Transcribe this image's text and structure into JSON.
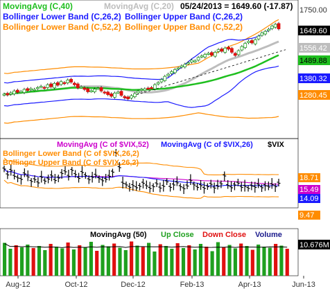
{
  "chart_data": [
    {
      "type": "candlestick",
      "panel": "price",
      "header": {
        "ma40": "MovingAvg (C,40)",
        "ma20": "MovingAvg (C,20)",
        "date_close": "05/24/2013 = 1649.60 (-17.87)",
        "bb26_lower": "Bollinger Lower Band (C,26,2)",
        "bb26_upper": "Bollinger Upper Band (C,26,2)",
        "bb52_lower": "Bollinger Lower Band (C,52,2)",
        "bb52_upper": "Bollinger Upper Band (C,52,2)"
      },
      "ylim": [
        1230,
        1760
      ],
      "yticks": [
        "1750.00"
      ],
      "badges": [
        {
          "value": "1649.60",
          "bg": "#000000",
          "fg": "#ffffff"
        },
        {
          "value": "1556.42",
          "bg": "#bdbdbd",
          "fg": "#ffffff"
        },
        {
          "value": "1489.88",
          "bg": "#1fbf1f",
          "fg": "#000000"
        },
        {
          "value": "1380.32",
          "bg": "#1a1aff",
          "fg": "#ffffff"
        },
        {
          "value": "1280.45",
          "bg": "#ff8c00",
          "fg": "#ffffff"
        }
      ],
      "series": {
        "close": [
          1400,
          1397,
          1405,
          1412,
          1407,
          1410,
          1418,
          1414,
          1421,
          1418,
          1425,
          1430,
          1422,
          1436,
          1428,
          1441,
          1434,
          1448,
          1440,
          1454,
          1446,
          1436,
          1424,
          1428,
          1418,
          1409,
          1413,
          1419,
          1422,
          1412,
          1405,
          1398,
          1392,
          1404,
          1408,
          1395,
          1386,
          1382,
          1394,
          1402,
          1411,
          1418,
          1420,
          1422,
          1424,
          1436,
          1444,
          1456,
          1468,
          1476,
          1486,
          1494,
          1500,
          1508,
          1514,
          1520,
          1530,
          1527,
          1540,
          1546,
          1552,
          1556,
          1549,
          1560,
          1570,
          1564,
          1576,
          1572,
          1560,
          1548,
          1566,
          1582,
          1594,
          1602,
          1596,
          1608,
          1622,
          1634,
          1640,
          1648,
          1660,
          1667,
          1649.6
        ],
        "ma20_end": 1556.42,
        "ma40_end": 1489.88,
        "bb26_upper_end": 1670,
        "bb26_lower_end": 1380.32,
        "bb52_upper_end": 1690,
        "bb52_lower_end": 1280.45
      }
    },
    {
      "type": "bar",
      "panel": "vix",
      "header": {
        "ma52": "MovingAvg (C of $VIX,52)",
        "ma26": "MovingAvg (C of $VIX,26)",
        "symbol": "$VIX",
        "bb_lower": "Bollinger Lower Band (C of $VIX,26,2)",
        "bb_upper": "Bollinger Upper Band (C of $VIX,26,2)"
      },
      "ylim": [
        7,
        27
      ],
      "badges": [
        {
          "value": "18.71",
          "bg": "#ff8c00",
          "fg": "#ffffff"
        },
        {
          "value": "15.49",
          "bg": "#cc00cc",
          "fg": "#ffffff"
        },
        {
          "value": "14.09",
          "bg": "#1a1aff",
          "fg": "#ffffff"
        },
        {
          "value": "13.xx",
          "bg": "#000000",
          "fg": "#ffffff",
          "hidden": true
        },
        {
          "value": "9.47",
          "bg": "#ff8c00",
          "fg": "#ffffff"
        }
      ],
      "series": {
        "vix": [
          18.2,
          16.5,
          17.8,
          16.1,
          15.6,
          15.2,
          16.8,
          15.9,
          14.6,
          15.1,
          14.2,
          15.8,
          14.7,
          15.3,
          16.2,
          14.9,
          15.6,
          16.9,
          17.4,
          16.1,
          17.8,
          16.6,
          15.5,
          17.2,
          16.3,
          15.1,
          15.8,
          16.4,
          15.4,
          14.8,
          15.2,
          16.1,
          17.3,
          22.7,
          18.6,
          14.1,
          13.6,
          12.9,
          13.4,
          12.8,
          13.2,
          14.1,
          13.3,
          12.6,
          13.1,
          13.9,
          12.7,
          13.2,
          14.5,
          12.9,
          13.6,
          14.2,
          13.1,
          12.5,
          13.3,
          14.8,
          13.6,
          12.9,
          13.4,
          12.6,
          13.1,
          13.8,
          12.7,
          13.2,
          13.9,
          16.2,
          13.4,
          12.8,
          13.6,
          14.1,
          12.9,
          13.2,
          12.6,
          13.3,
          12.9,
          13.6,
          12.8,
          13.4,
          13.0,
          13.7,
          13.1,
          14.1
        ],
        "ma26_end": 14.09,
        "ma52_end": 15.49,
        "bb_upper_end": 18.71,
        "bb_lower_end": 9.47
      }
    },
    {
      "type": "bar",
      "panel": "volume",
      "header": {
        "ma50": "MovingAvg (50)",
        "up": "Up Close",
        "down": "Down Close",
        "volume": "Volume"
      },
      "badge": {
        "value": "10.676M",
        "bg": "#000000",
        "fg": "#ffffff"
      },
      "volumes": [
        0.95,
        0.78,
        0.88,
        0.82,
        0.9,
        0.8,
        0.86,
        0.74,
        0.92,
        0.84,
        0.79,
        0.96,
        0.76,
        0.88,
        0.83,
        0.98,
        0.72,
        0.89,
        0.85,
        0.93,
        0.81,
        0.74,
        0.99,
        0.87,
        0.83,
        0.95,
        0.7,
        0.91,
        0.86,
        0.78,
        0.94,
        0.8,
        0.88,
        0.76,
        0.92,
        0.84,
        0.71,
        0.97,
        0.82,
        0.89,
        0.79,
        0.93,
        0.86,
        0.75,
        0.9,
        0.84,
        0.81,
        0.92,
        0.87,
        0.78
      ],
      "up": [
        1,
        1,
        0,
        1,
        1,
        0,
        1,
        1,
        0,
        1,
        1,
        0,
        1,
        0,
        1,
        1,
        0,
        1,
        1,
        0,
        1,
        1,
        0,
        1,
        0,
        1,
        1,
        0,
        1,
        1,
        0,
        1,
        0,
        1,
        1,
        0,
        1,
        1,
        0,
        1,
        1,
        0,
        1,
        0,
        1,
        1,
        1,
        0,
        1,
        0
      ]
    }
  ],
  "x_axis": {
    "ticks": [
      "Aug-12",
      "Oct-12",
      "Dec-12",
      "Feb-13",
      "Apr-13",
      "Jun-13"
    ]
  }
}
